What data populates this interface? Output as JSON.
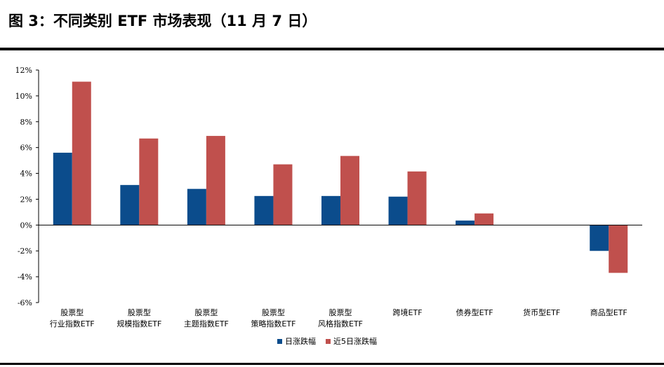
{
  "title": "图 3：不同类别 ETF 市场表现（11 月 7 日）",
  "colors": {
    "series1": "#0B4C8C",
    "series2": "#C0504D"
  },
  "chart_data": {
    "type": "bar",
    "categories": [
      [
        "股票型",
        "行业指数ETF"
      ],
      [
        "股票型",
        "规模指数ETF"
      ],
      [
        "股票型",
        "主题指数ETF"
      ],
      [
        "股票型",
        "策略指数ETF"
      ],
      [
        "股票型",
        "风格指数ETF"
      ],
      [
        "跨境ETF"
      ],
      [
        "债券型ETF"
      ],
      [
        "货币型ETF"
      ],
      [
        "商品型ETF"
      ]
    ],
    "series": [
      {
        "name": "日涨跌幅",
        "values": [
          5.6,
          3.1,
          2.8,
          2.25,
          2.25,
          2.2,
          0.35,
          0.0,
          -2.0
        ]
      },
      {
        "name": "近5日涨跌幅",
        "values": [
          11.1,
          6.7,
          6.9,
          4.7,
          5.35,
          4.15,
          0.9,
          0.0,
          -3.7
        ]
      }
    ],
    "yticks": [
      "12%",
      "10%",
      "8%",
      "6%",
      "4%",
      "2%",
      "0%",
      "-2%",
      "-4%",
      "-6%"
    ],
    "ylim": [
      -6,
      12
    ],
    "legend_position": "bottom",
    "grid": false
  }
}
